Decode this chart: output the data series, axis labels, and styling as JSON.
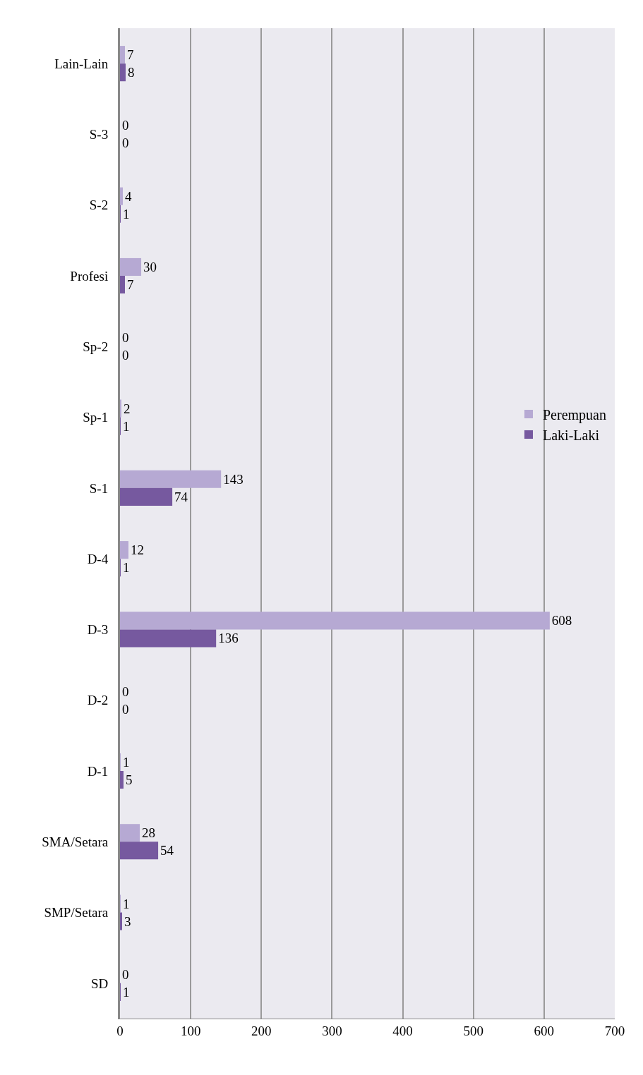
{
  "chart_data": {
    "type": "bar",
    "orientation": "horizontal",
    "categories": [
      "Lain-Lain",
      "S-3",
      "S-2",
      "Profesi",
      "Sp-2",
      "Sp-1",
      "S-1",
      "D-4",
      "D-3",
      "D-2",
      "D-1",
      "SMA/Setara",
      "SMP/Setara",
      "SD"
    ],
    "series": [
      {
        "name": "Perempuan",
        "color": "#b6a9d3",
        "values": [
          7,
          0,
          4,
          30,
          0,
          2,
          143,
          12,
          608,
          0,
          1,
          28,
          1,
          0
        ]
      },
      {
        "name": "Laki-Laki",
        "color": "#76599f",
        "values": [
          8,
          0,
          1,
          7,
          0,
          1,
          74,
          1,
          136,
          0,
          5,
          54,
          3,
          1
        ]
      }
    ],
    "xlim": [
      0,
      700
    ],
    "xticks": [
      0,
      100,
      200,
      300,
      400,
      500,
      600,
      700
    ],
    "grid": "x",
    "legend": "right",
    "data_labels": true
  }
}
